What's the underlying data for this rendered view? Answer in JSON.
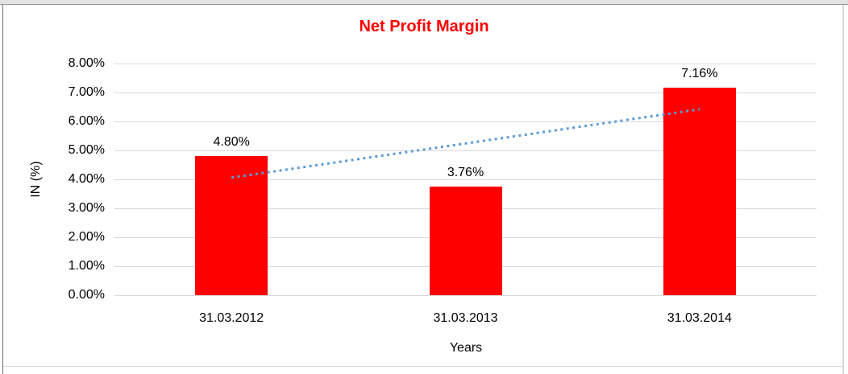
{
  "chart_data": {
    "type": "bar",
    "title": "Net Profit Margin",
    "categories": [
      "31.03.2012",
      "31.03.2013",
      "31.03.2014"
    ],
    "values": [
      4.8,
      3.76,
      7.16
    ],
    "value_labels": [
      "4.80%",
      "3.76%",
      "7.16%"
    ],
    "xlabel": "Years",
    "ylabel": "IN (%)",
    "ylim": [
      0,
      8
    ],
    "ytick_step": 1,
    "ytick_labels": [
      "0.00%",
      "1.00%",
      "2.00%",
      "3.00%",
      "4.00%",
      "5.00%",
      "6.00%",
      "7.00%",
      "8.00%"
    ],
    "grid": true,
    "legend": "none",
    "trendline": {
      "type": "linear",
      "style": "dotted",
      "color": "#5b9bd5",
      "endpoint_values": [
        4.06,
        6.42
      ]
    },
    "colors": {
      "bar": "#ff0000",
      "title": "#ff0000",
      "gridline": "#d9d9d9",
      "text": "#000000"
    }
  }
}
